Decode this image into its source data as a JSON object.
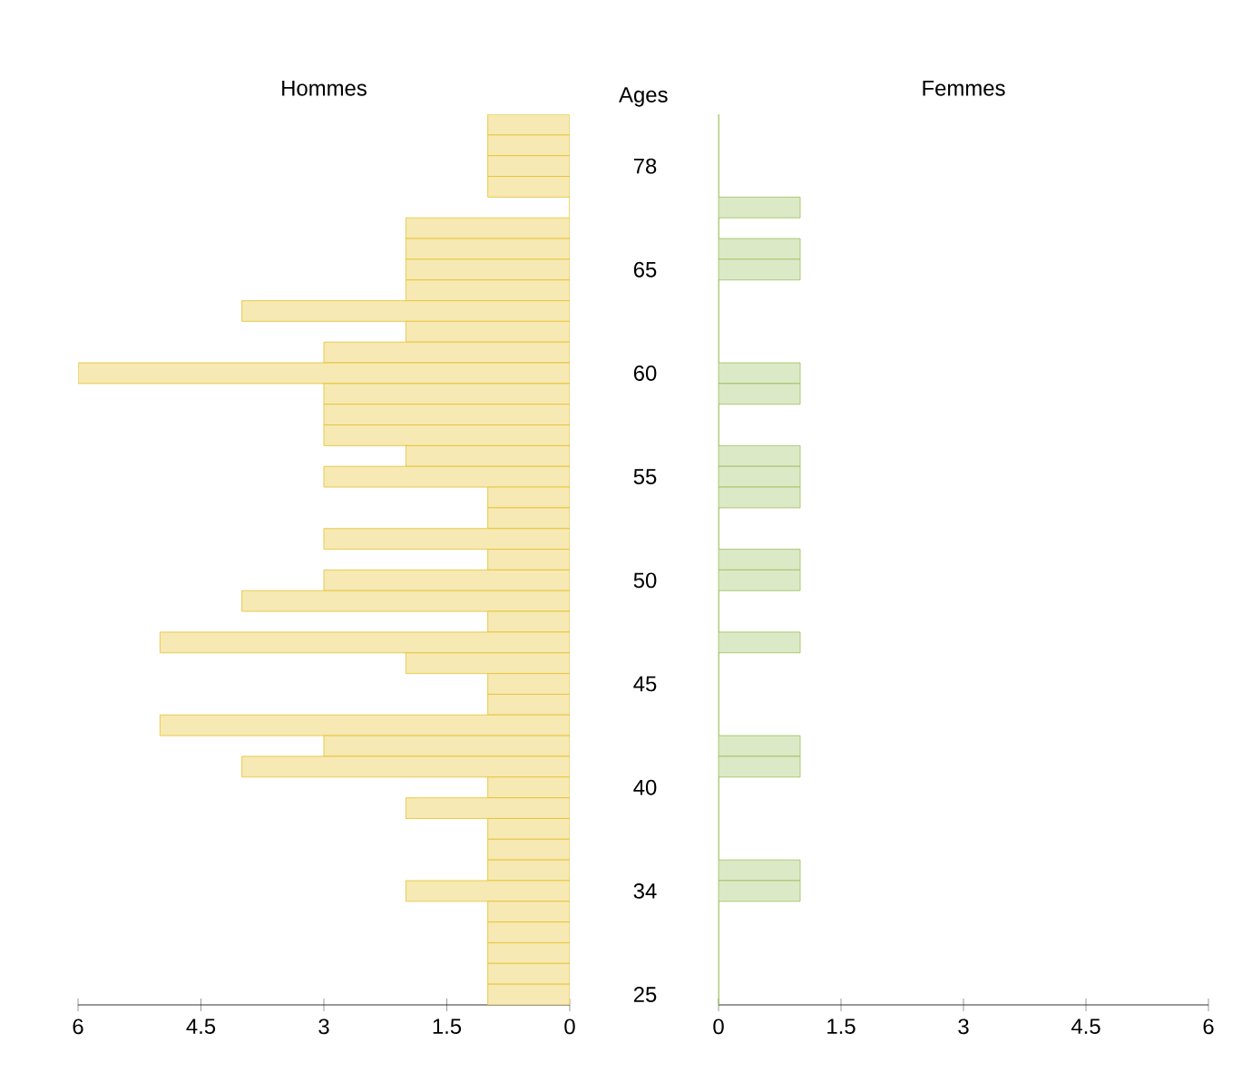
{
  "chart_data": [
    {
      "type": "bar",
      "orientation": "horizontal",
      "title": "Hommes",
      "ylabel": "Ages",
      "categories": [
        null,
        null,
        "78",
        null,
        null,
        null,
        null,
        "65",
        null,
        null,
        null,
        null,
        "60",
        null,
        null,
        null,
        null,
        "55",
        null,
        null,
        null,
        null,
        "50",
        null,
        null,
        null,
        null,
        "45",
        null,
        null,
        null,
        null,
        "40",
        null,
        null,
        null,
        null,
        "34",
        null,
        null,
        null,
        null,
        "25"
      ],
      "values": [
        1,
        1,
        1,
        1,
        0,
        2,
        2,
        2,
        2,
        4,
        2,
        3,
        6,
        3,
        3,
        3,
        2,
        3,
        1,
        1,
        3,
        1,
        3,
        4,
        1,
        5,
        2,
        1,
        1,
        5,
        3,
        4,
        1,
        2,
        1,
        1,
        1,
        2,
        1,
        1,
        1,
        1,
        1
      ],
      "color": "#e6c02a",
      "xlim": [
        6,
        0
      ],
      "xticks": [
        6,
        4.5,
        3,
        1.5,
        0
      ]
    },
    {
      "type": "bar",
      "orientation": "horizontal",
      "title": "Femmes",
      "tick_labels": "x",
      "categories": [
        null,
        null,
        "78",
        null,
        null,
        null,
        null,
        "65",
        null,
        null,
        null,
        null,
        "60",
        null,
        null,
        null,
        null,
        "55",
        null,
        null,
        null,
        null,
        "50",
        null,
        null,
        null,
        null,
        "45",
        null,
        null,
        null,
        null,
        "40",
        null,
        null,
        null,
        null,
        "34",
        null,
        null,
        null,
        null,
        "25"
      ],
      "values": [
        0,
        0,
        0,
        0,
        1,
        0,
        1,
        1,
        0,
        0,
        0,
        0,
        1,
        1,
        0,
        0,
        1,
        1,
        1,
        0,
        0,
        1,
        1,
        0,
        0,
        1,
        0,
        0,
        0,
        0,
        1,
        1,
        0,
        0,
        0,
        0,
        1,
        1,
        0,
        0,
        0,
        0,
        0
      ],
      "color": "#9cbf5c",
      "xlim": [
        0,
        6
      ],
      "xticks": [
        0,
        1.5,
        3,
        4.5,
        6
      ]
    }
  ]
}
